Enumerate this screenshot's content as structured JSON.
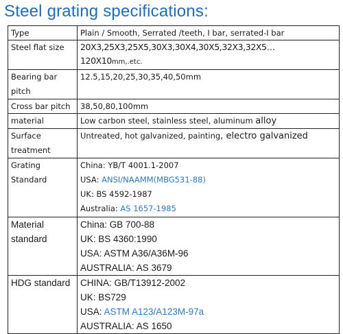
{
  "title": "Steel grating specifications:",
  "rows": {
    "type": {
      "label": "Type",
      "value": "Plain / Smooth, Serrated /teeth, I bar, serrated-I bar"
    },
    "flat": {
      "label": "Steel flat size",
      "value_main": "20X3,25X3,25X5,30X3,30X4,30X5,32X3,32X5…120X10",
      "value_tail": "mm,.etc."
    },
    "bearing": {
      "label": "Bearing bar pitch",
      "value": "12.5,15,20,25,30,35,40,50mm"
    },
    "cross": {
      "label": "Cross bar pitch",
      "value": "38,50,80,100mm"
    },
    "material": {
      "label": "material",
      "value_main": "Low carbon steel, stainless steel, aluminum ",
      "value_tail": "alloy"
    },
    "surface": {
      "label": "Surface treatment",
      "value_main": "Untreated, hot galvanized, painting",
      "value_mid": ", electro galv",
      "value_tail": "anized"
    },
    "grating": {
      "label": "Grating Standard",
      "lines": [
        {
          "prefix": "China: ",
          "link": "",
          "text": "YB/T 4001.1-2007"
        },
        {
          "prefix": "USA: ",
          "link": "ANSI/NAAMM(MBG531-88)",
          "text": ""
        },
        {
          "prefix": "UK: ",
          "link": "",
          "text": "BS 4592-1987"
        },
        {
          "prefix": "Australia: ",
          "link": "AS 1657-1985",
          "text": ""
        }
      ]
    },
    "material_std": {
      "label": "Material standard",
      "lines": [
        "China: GB 700-88",
        "UK: BS 4360:1990",
        "USA: ASTM A36/A36M-96",
        "AUSTRALIA: AS 3679"
      ]
    },
    "hdg": {
      "label": "HDG standard",
      "lines": [
        {
          "prefix": "CHINA: GB/T13912-2002",
          "link": ""
        },
        {
          "prefix": "UK: BS729",
          "link": ""
        },
        {
          "prefix": "USA: ",
          "link": "ASTM A123/A123M-97a"
        },
        {
          "prefix": "AUSTRALIA: AS 1650",
          "link": ""
        }
      ]
    }
  },
  "colors": {
    "title": "#1a6ec2",
    "link": "#2b7bcf",
    "border": "#222222"
  }
}
